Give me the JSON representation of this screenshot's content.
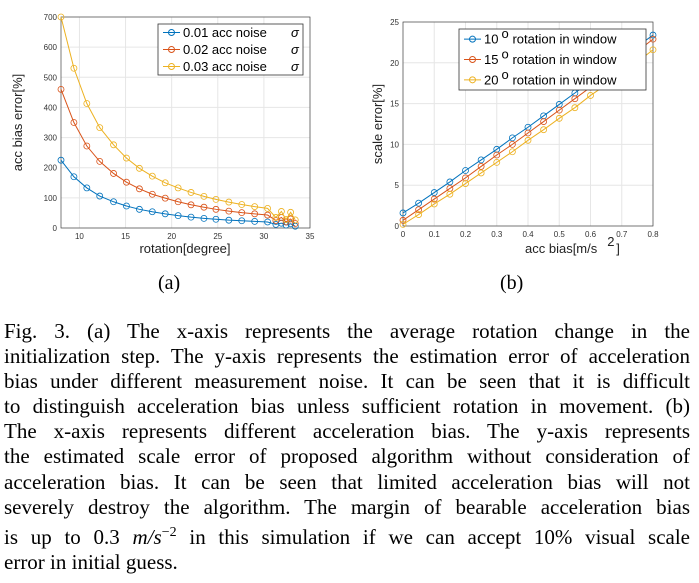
{
  "chart_data": [
    {
      "type": "line",
      "xlabel": "rotation[degree]",
      "ylabel": "acc bias error[%]",
      "xlim": [
        8,
        35
      ],
      "ylim": [
        0,
        700
      ],
      "xticks": [
        10,
        15,
        20,
        25,
        30,
        35
      ],
      "yticks": [
        0,
        100,
        200,
        300,
        400,
        500,
        600,
        700
      ],
      "grid": true,
      "legend_position": "top-right",
      "x": [
        8,
        9.4,
        10.8,
        12.2,
        13.7,
        15.1,
        16.5,
        17.9,
        19.3,
        20.7,
        22.1,
        23.5,
        24.8,
        26.2,
        27.6,
        29.0,
        30.4,
        31.3,
        31.9,
        32.4,
        32.9,
        33.4
      ],
      "series": [
        {
          "name": "0.01 acc noise",
          "name_symbol": "σ",
          "color": "#0072BD",
          "values": [
            225,
            170,
            133,
            106,
            87,
            73,
            62,
            54,
            47,
            41,
            36,
            32,
            29,
            26,
            24,
            22,
            20,
            12,
            16,
            10,
            14,
            6
          ]
        },
        {
          "name": "0.02 acc noise",
          "name_symbol": "σ",
          "color": "#D95319",
          "values": [
            460,
            350,
            272,
            221,
            181,
            152,
            130,
            112,
            99,
            87,
            77,
            69,
            62,
            56,
            51,
            47,
            43,
            25,
            35,
            20,
            30,
            15
          ]
        },
        {
          "name": "0.03 acc noise",
          "name_symbol": "σ",
          "color": "#EDB120",
          "values": [
            700,
            530,
            413,
            333,
            276,
            232,
            198,
            172,
            150,
            133,
            118,
            105,
            95,
            86,
            78,
            71,
            65,
            35,
            55,
            28,
            52,
            27
          ]
        }
      ],
      "sublabel": "(a)"
    },
    {
      "type": "line",
      "xlabel": "acc bias[m/s",
      "xlabel_sup": "2",
      "xlabel_end": "]",
      "ylabel": "scale error[%]",
      "xlim": [
        0,
        0.8
      ],
      "ylim": [
        0,
        25
      ],
      "xticks": [
        0,
        0.1,
        0.2,
        0.3,
        0.4,
        0.5,
        0.6,
        0.7,
        0.8
      ],
      "yticks": [
        0,
        5,
        10,
        15,
        20,
        25
      ],
      "grid": true,
      "legend_position": "top-right",
      "x": [
        0,
        0.05,
        0.1,
        0.15,
        0.2,
        0.25,
        0.3,
        0.35,
        0.4,
        0.45,
        0.5,
        0.55,
        0.6,
        0.65,
        0.7,
        0.75,
        0.8
      ],
      "series": [
        {
          "name": "10",
          "name_sup": "o",
          "name_rest": "rotation in window",
          "color": "#0072BD",
          "values": [
            1.6,
            2.8,
            4.1,
            5.4,
            6.8,
            8.1,
            9.4,
            10.8,
            12.1,
            13.5,
            14.9,
            16.3,
            17.7,
            19.1,
            20.5,
            22.0,
            23.4
          ]
        },
        {
          "name": "15",
          "name_sup": "o",
          "name_rest": "rotation in window",
          "color": "#D95319",
          "values": [
            0.7,
            2.0,
            3.3,
            4.6,
            5.9,
            7.3,
            8.7,
            10.0,
            11.4,
            12.8,
            14.2,
            15.6,
            17.0,
            18.5,
            19.9,
            21.4,
            22.9
          ]
        },
        {
          "name": "20",
          "name_sup": "o",
          "name_rest": "rotation in window",
          "color": "#EDB120",
          "values": [
            0.2,
            1.4,
            2.7,
            3.9,
            5.2,
            6.5,
            7.8,
            9.1,
            10.5,
            11.8,
            13.2,
            14.5,
            16.0,
            17.3,
            18.7,
            20.1,
            21.6
          ]
        }
      ],
      "sublabel": "(b)"
    }
  ],
  "caption": {
    "lines": [
      "Fig. 3.    (a) The x-axis represents the average rotation change in the",
      "initialization step. The y-axis represents the estimation error of acceleration",
      "bias under different measurement noise. It can be seen that it is difficult",
      "to distinguish acceleration bias unless sufficient rotation in movement. (b)",
      "The x-axis represents different acceleration bias. The y-axis represents",
      "the estimated scale error of proposed algorithm without consideration of",
      "acceleration bias. It can be seen that limited acceleration bias will not",
      "severely destroy the algorithm. The margin of bearable acceleration bias"
    ],
    "line9_pre": "is up to 0.3 ",
    "line9_math": "m/s",
    "line9_sup": "−2",
    "line9_post": " in this simulation if we can accept 10% visual scale",
    "line10": "error in initial guess."
  }
}
